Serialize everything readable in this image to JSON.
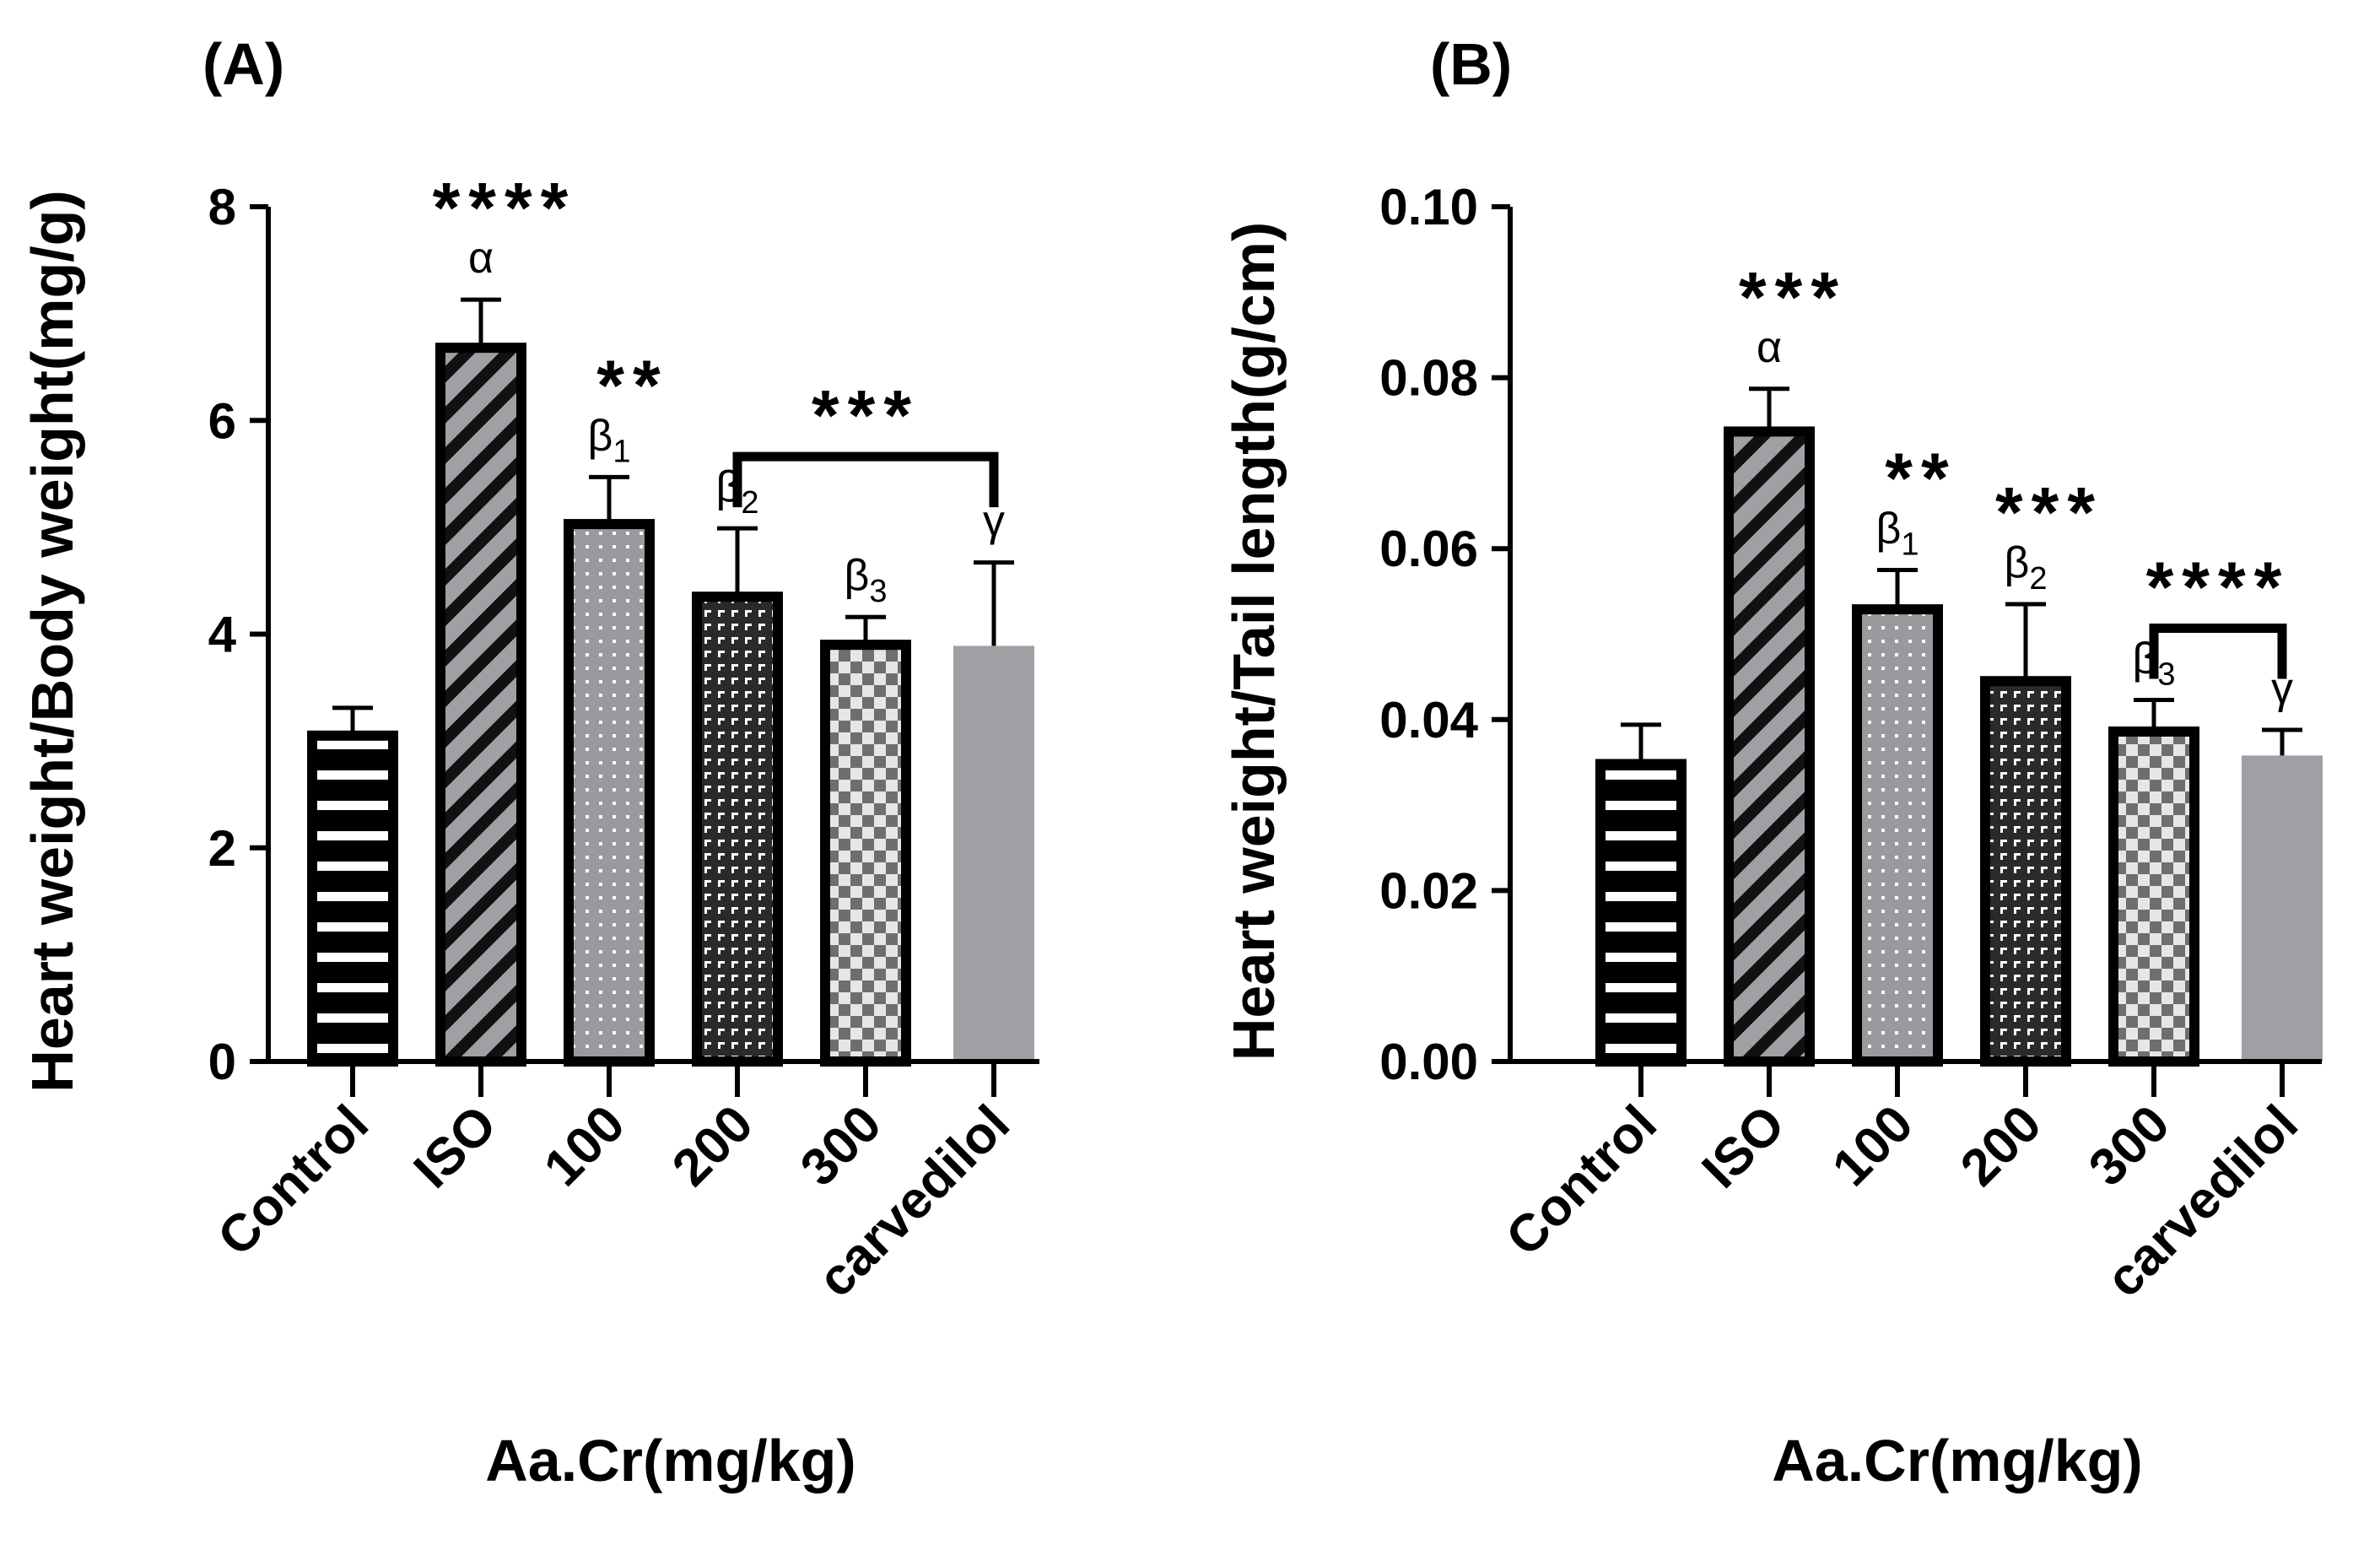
{
  "chart_data": [
    {
      "type": "bar",
      "panel": "(A)",
      "title": "",
      "ylabel": "Heart weight/Body weight(mg/g)",
      "xlabel": "Aa.Cr(mg/kg)",
      "categories": [
        "Control",
        "ISO",
        "100",
        "200",
        "300",
        "carvedilol"
      ],
      "values": [
        3.05,
        6.68,
        5.03,
        4.35,
        3.9,
        3.89
      ],
      "errors": [
        0.26,
        0.45,
        0.44,
        0.64,
        0.26,
        0.78
      ],
      "ylim": [
        0,
        8
      ],
      "yticks": [
        "0",
        "2",
        "4",
        "6",
        "8"
      ],
      "grid": false,
      "patterns": [
        "hstripe",
        "diag",
        "dots",
        "grid",
        "check",
        "solid"
      ],
      "annotations": [
        {
          "bar": 1,
          "symbol": "α",
          "sub": "",
          "stars": "****"
        },
        {
          "bar": 2,
          "symbol": "β",
          "sub": "1",
          "stars": "**"
        },
        {
          "bar": 3,
          "symbol": "β",
          "sub": "2",
          "stars": ""
        },
        {
          "bar": 4,
          "symbol": "β",
          "sub": "3",
          "stars": ""
        },
        {
          "bar": 5,
          "symbol": "γ",
          "sub": "",
          "stars": ""
        }
      ],
      "bracket": {
        "from": 3,
        "to": 5,
        "stars": "***"
      }
    },
    {
      "type": "bar",
      "panel": "(B)",
      "title": "",
      "ylabel": "Heart weight/Tail length(g/cm)",
      "xlabel": "Aa.Cr(mg/kg)",
      "categories": [
        "Control",
        "ISO",
        "100",
        "200",
        "300",
        "carvedilol"
      ],
      "values": [
        0.0348,
        0.0737,
        0.0529,
        0.0445,
        0.0386,
        0.0358
      ],
      "errors": [
        0.0046,
        0.005,
        0.0046,
        0.009,
        0.0037,
        0.003
      ],
      "ylim": [
        0,
        0.1
      ],
      "yticks": [
        "0.00",
        "0.02",
        "0.04",
        "0.06",
        "0.08",
        "0.10"
      ],
      "grid": false,
      "patterns": [
        "hstripe",
        "diag",
        "dots",
        "grid",
        "check",
        "solid"
      ],
      "annotations": [
        {
          "bar": 1,
          "symbol": "α",
          "sub": "",
          "stars": "***"
        },
        {
          "bar": 2,
          "symbol": "β",
          "sub": "1",
          "stars": "**"
        },
        {
          "bar": 3,
          "symbol": "β",
          "sub": "2",
          "stars": "***"
        },
        {
          "bar": 4,
          "symbol": "β",
          "sub": "3",
          "stars": ""
        },
        {
          "bar": 5,
          "symbol": "γ",
          "sub": "",
          "stars": ""
        }
      ],
      "bracket": {
        "from": 4,
        "to": 5,
        "stars": "****"
      }
    }
  ],
  "colors": {
    "ink": "#000000",
    "bar_gray": "#a0a0a4",
    "bar_dark": "#505054",
    "white": "#ffffff"
  }
}
